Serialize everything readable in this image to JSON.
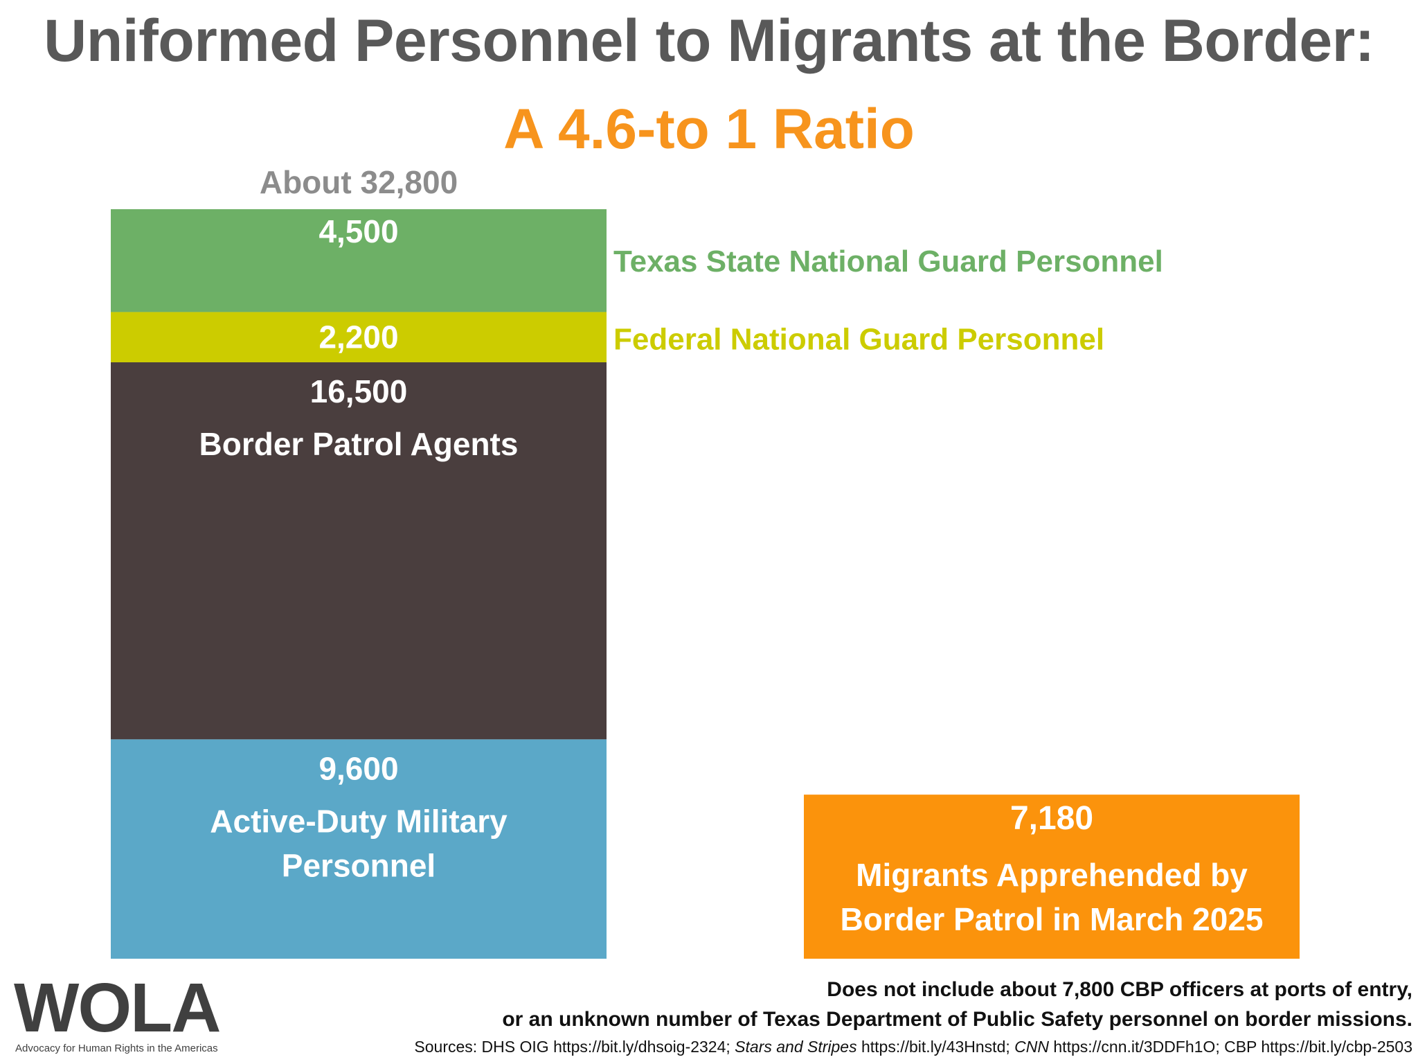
{
  "header": {
    "title": "Uniformed Personnel to Migrants at the Border:",
    "subtitle": "A 4.6-to 1 Ratio"
  },
  "total_label": "About 32,800",
  "chart_data": {
    "type": "bar",
    "stacked": true,
    "title": "Uniformed Personnel to Migrants at the Border:",
    "subtitle": "A 4.6-to 1 Ratio",
    "ylim": [
      0,
      32800
    ],
    "grid": false,
    "personnel_stack": {
      "total_label": "About 32,800",
      "segments": [
        {
          "key": "active_duty",
          "value": 9600,
          "value_label": "9,600",
          "label_lines": [
            "Active-Duty Military",
            "Personnel"
          ],
          "color": "#5ba8c8",
          "label_inside": true
        },
        {
          "key": "border_patrol",
          "value": 16500,
          "value_label": "16,500",
          "label_lines": [
            "Border Patrol Agents"
          ],
          "color": "#4a3e3e",
          "label_inside": true
        },
        {
          "key": "federal_ng",
          "value": 2200,
          "value_label": "2,200",
          "label_lines": [
            "Federal National Guard Personnel"
          ],
          "color": "#cccc00",
          "label_inside": false
        },
        {
          "key": "texas_ng",
          "value": 4500,
          "value_label": "4,500",
          "label_lines": [
            "Texas State National Guard Personnel"
          ],
          "color": "#6db066",
          "label_inside": false
        }
      ]
    },
    "migrants_bar": {
      "value": 7180,
      "value_label": "7,180",
      "label_lines": [
        "Migrants Apprehended by",
        "Border Patrol in March 2025"
      ],
      "color": "#fb930c"
    }
  },
  "logo": {
    "text": "WOLA",
    "tagline": "Advocacy for Human Rights in the Americas"
  },
  "footnotes": {
    "line1": "Does not include about 7,800 CBP officers at ports of entry,",
    "line2": "or an unknown number of Texas Department of Public Safety personnel on border missions.",
    "sources": [
      {
        "text": "Sources: DHS OIG https://bit.ly/dhsoig-2324; ",
        "italic": false
      },
      {
        "text": "Stars and Stripes",
        "italic": true
      },
      {
        "text": " https://bit.ly/43Hnstd; ",
        "italic": false
      },
      {
        "text": "CNN",
        "italic": true
      },
      {
        "text": " https://cnn.it/3DDFh1O; CBP https://bit.ly/cbp-2503",
        "italic": false
      }
    ]
  }
}
